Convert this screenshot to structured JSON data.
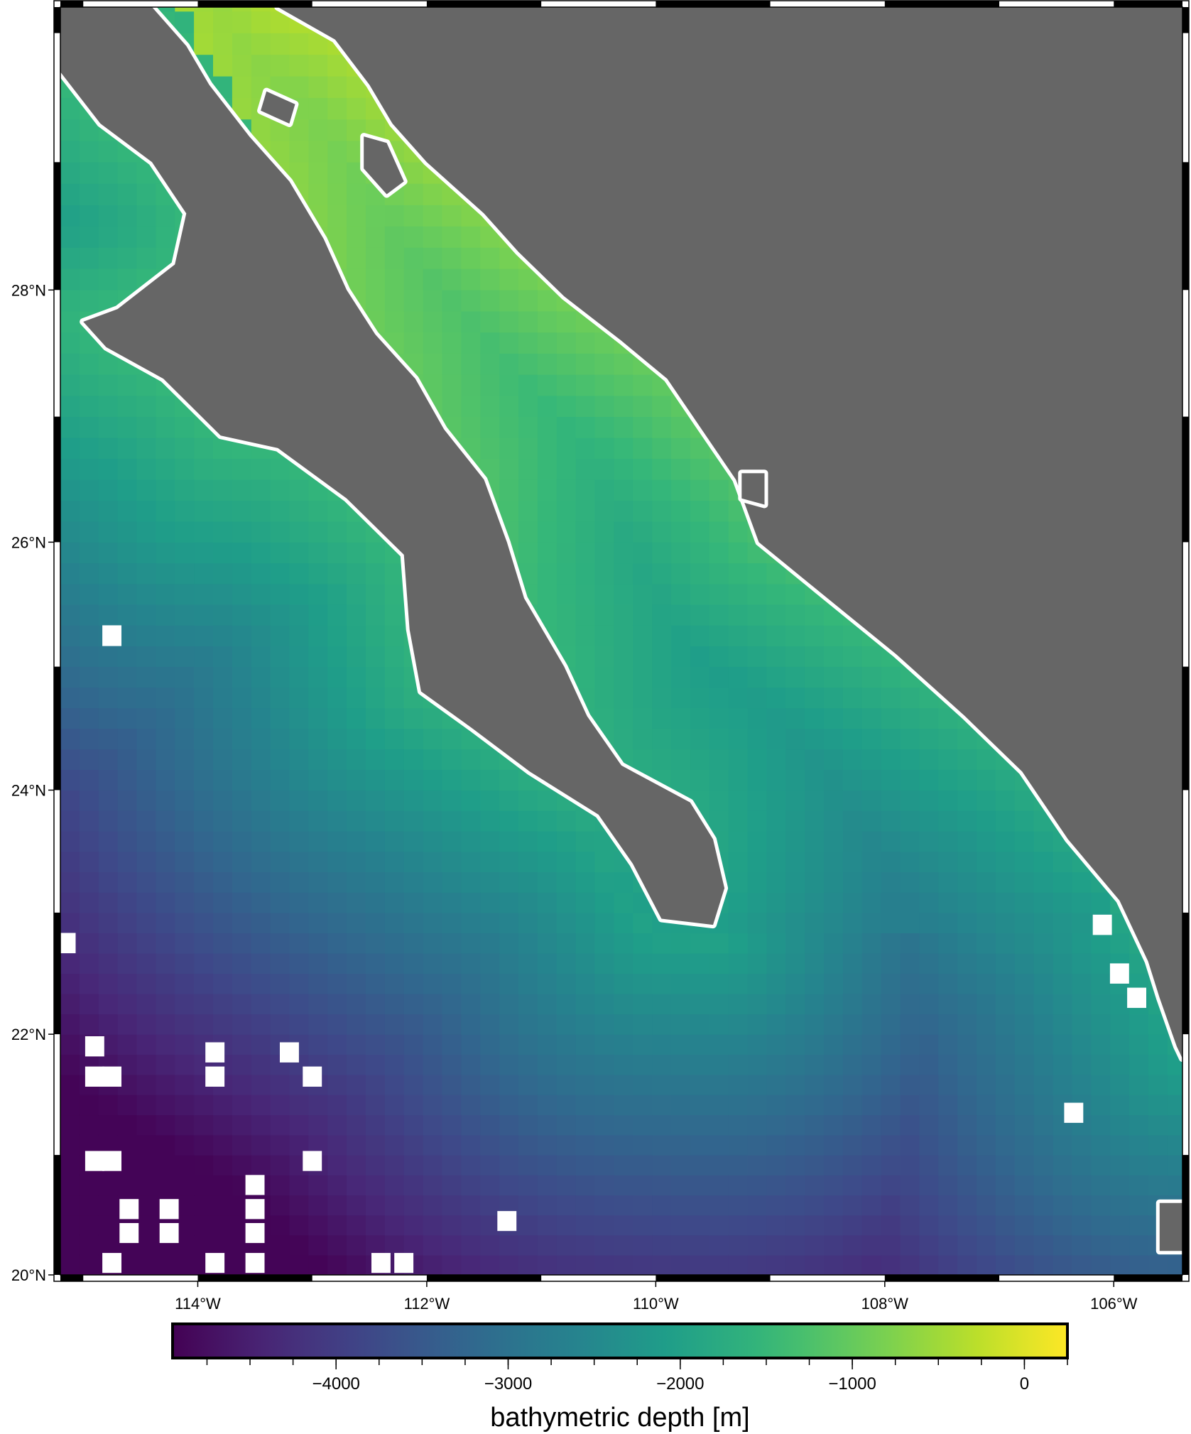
{
  "map": {
    "region": {
      "west": -115.2,
      "east": -105.4,
      "south": 20,
      "north": 30.2
    },
    "projection": "mercator",
    "land_color": "#666666",
    "nodata_color": "#ffffff",
    "frame_style": "fancy",
    "grid_cell_degrees": 0.1667,
    "x_ticks": [
      {
        "value": -114,
        "label": "114°W"
      },
      {
        "value": -112,
        "label": "112°W"
      },
      {
        "value": -110,
        "label": "110°W"
      },
      {
        "value": -108,
        "label": "108°W"
      },
      {
        "value": -106,
        "label": "106°W"
      }
    ],
    "y_ticks": [
      {
        "value": 20,
        "label": "20°N"
      },
      {
        "value": 22,
        "label": "22°N"
      },
      {
        "value": 24,
        "label": "24°N"
      },
      {
        "value": 26,
        "label": "26°N"
      },
      {
        "value": 28,
        "label": "28°N"
      }
    ]
  },
  "colorbar": {
    "label": "bathymetric depth [m]",
    "colormap": "viridis",
    "range": [
      -4950,
      250
    ],
    "ticks": [
      {
        "value": -4000,
        "label": "−4000"
      },
      {
        "value": -3000,
        "label": "−3000"
      },
      {
        "value": -2000,
        "label": "−2000"
      },
      {
        "value": -1000,
        "label": "−1000"
      },
      {
        "value": 0,
        "label": "0"
      }
    ],
    "minor_tick_step": 250,
    "viridis_stops": [
      "#440154",
      "#482878",
      "#3e4989",
      "#31688e",
      "#26828e",
      "#1f9e89",
      "#35b779",
      "#6ece58",
      "#b5de2b",
      "#fde725"
    ]
  },
  "land": {
    "mainland": [
      [
        -113.3,
        30.2
      ],
      [
        -112.8,
        29.95
      ],
      [
        -112.5,
        29.6
      ],
      [
        -112.3,
        29.3
      ],
      [
        -112,
        29
      ],
      [
        -111.5,
        28.6
      ],
      [
        -111.2,
        28.3
      ],
      [
        -110.8,
        27.95
      ],
      [
        -110.3,
        27.6
      ],
      [
        -109.9,
        27.3
      ],
      [
        -109.6,
        26.9
      ],
      [
        -109.3,
        26.5
      ],
      [
        -109.1,
        26
      ],
      [
        -108.5,
        25.55
      ],
      [
        -107.9,
        25.1
      ],
      [
        -107.3,
        24.6
      ],
      [
        -106.8,
        24.15
      ],
      [
        -106.4,
        23.6
      ],
      [
        -105.95,
        23.1
      ],
      [
        -105.7,
        22.6
      ],
      [
        -105.6,
        22.3
      ],
      [
        -105.45,
        21.9
      ],
      [
        -105.4,
        21.8
      ],
      [
        -105.4,
        30.2
      ]
    ],
    "peninsula": [
      [
        -115.2,
        29.7
      ],
      [
        -114.85,
        29.3
      ],
      [
        -114.4,
        29
      ],
      [
        -114.1,
        28.6
      ],
      [
        -114.2,
        28.2
      ],
      [
        -114.7,
        27.85
      ],
      [
        -115,
        27.75
      ],
      [
        -114.8,
        27.55
      ],
      [
        -114.3,
        27.3
      ],
      [
        -113.8,
        26.85
      ],
      [
        -113.3,
        26.75
      ],
      [
        -112.7,
        26.35
      ],
      [
        -112.2,
        25.9
      ],
      [
        -112.15,
        25.3
      ],
      [
        -112.05,
        24.8
      ],
      [
        -111.6,
        24.5
      ],
      [
        -111.1,
        24.15
      ],
      [
        -110.5,
        23.8
      ],
      [
        -110.2,
        23.4
      ],
      [
        -109.95,
        22.95
      ],
      [
        -109.5,
        22.9
      ],
      [
        -109.4,
        23.2
      ],
      [
        -109.5,
        23.6
      ],
      [
        -109.7,
        23.9
      ],
      [
        -110.3,
        24.2
      ],
      [
        -110.6,
        24.6
      ],
      [
        -110.8,
        25
      ],
      [
        -111.15,
        25.55
      ],
      [
        -111.3,
        26
      ],
      [
        -111.5,
        26.5
      ],
      [
        -111.85,
        26.9
      ],
      [
        -112.1,
        27.3
      ],
      [
        -112.45,
        27.65
      ],
      [
        -112.7,
        28
      ],
      [
        -112.9,
        28.4
      ],
      [
        -113.2,
        28.85
      ],
      [
        -113.55,
        29.2
      ],
      [
        -113.9,
        29.6
      ],
      [
        -114.1,
        29.9
      ],
      [
        -114.4,
        30.2
      ],
      [
        -115.2,
        30.2
      ]
    ],
    "islands": [
      [
        [
          -112.55,
          29.2
        ],
        [
          -112.35,
          29.15
        ],
        [
          -112.2,
          28.85
        ],
        [
          -112.35,
          28.75
        ],
        [
          -112.55,
          28.95
        ]
      ],
      [
        [
          -113.4,
          29.55
        ],
        [
          -113.15,
          29.45
        ],
        [
          -113.2,
          29.3
        ],
        [
          -113.45,
          29.4
        ]
      ],
      [
        [
          -109.25,
          26.55
        ],
        [
          -109.05,
          26.55
        ],
        [
          -109.05,
          26.3
        ],
        [
          -109.25,
          26.35
        ]
      ]
    ],
    "south_tip": [
      [
        -105.6,
        20.2
      ],
      [
        -105.4,
        20.2
      ],
      [
        -105.4,
        20.6
      ],
      [
        -105.6,
        20.6
      ]
    ]
  },
  "nodata_cells": [
    [
      -114.75,
      25.25
    ],
    [
      -115.15,
      22.75
    ],
    [
      -114.9,
      21.9
    ],
    [
      -114.75,
      21.65
    ],
    [
      -114.9,
      21.65
    ],
    [
      -113.85,
      21.85
    ],
    [
      -113.85,
      21.65
    ],
    [
      -113.2,
      21.85
    ],
    [
      -113.0,
      21.65
    ],
    [
      -114.9,
      20.95
    ],
    [
      -114.75,
      20.95
    ],
    [
      -113.0,
      20.95
    ],
    [
      -114.6,
      20.55
    ],
    [
      -114.6,
      20.35
    ],
    [
      -114.75,
      20.1
    ],
    [
      -114.25,
      20.35
    ],
    [
      -114.25,
      20.55
    ],
    [
      -113.85,
      20.1
    ],
    [
      -113.5,
      20.55
    ],
    [
      -113.5,
      20.75
    ],
    [
      -113.5,
      20.35
    ],
    [
      -113.5,
      20.1
    ],
    [
      -112.4,
      20.1
    ],
    [
      -112.2,
      20.1
    ],
    [
      -111.3,
      20.45
    ],
    [
      -106.35,
      21.35
    ],
    [
      -106.1,
      22.9
    ],
    [
      -105.95,
      22.5
    ],
    [
      -105.8,
      22.3
    ]
  ]
}
